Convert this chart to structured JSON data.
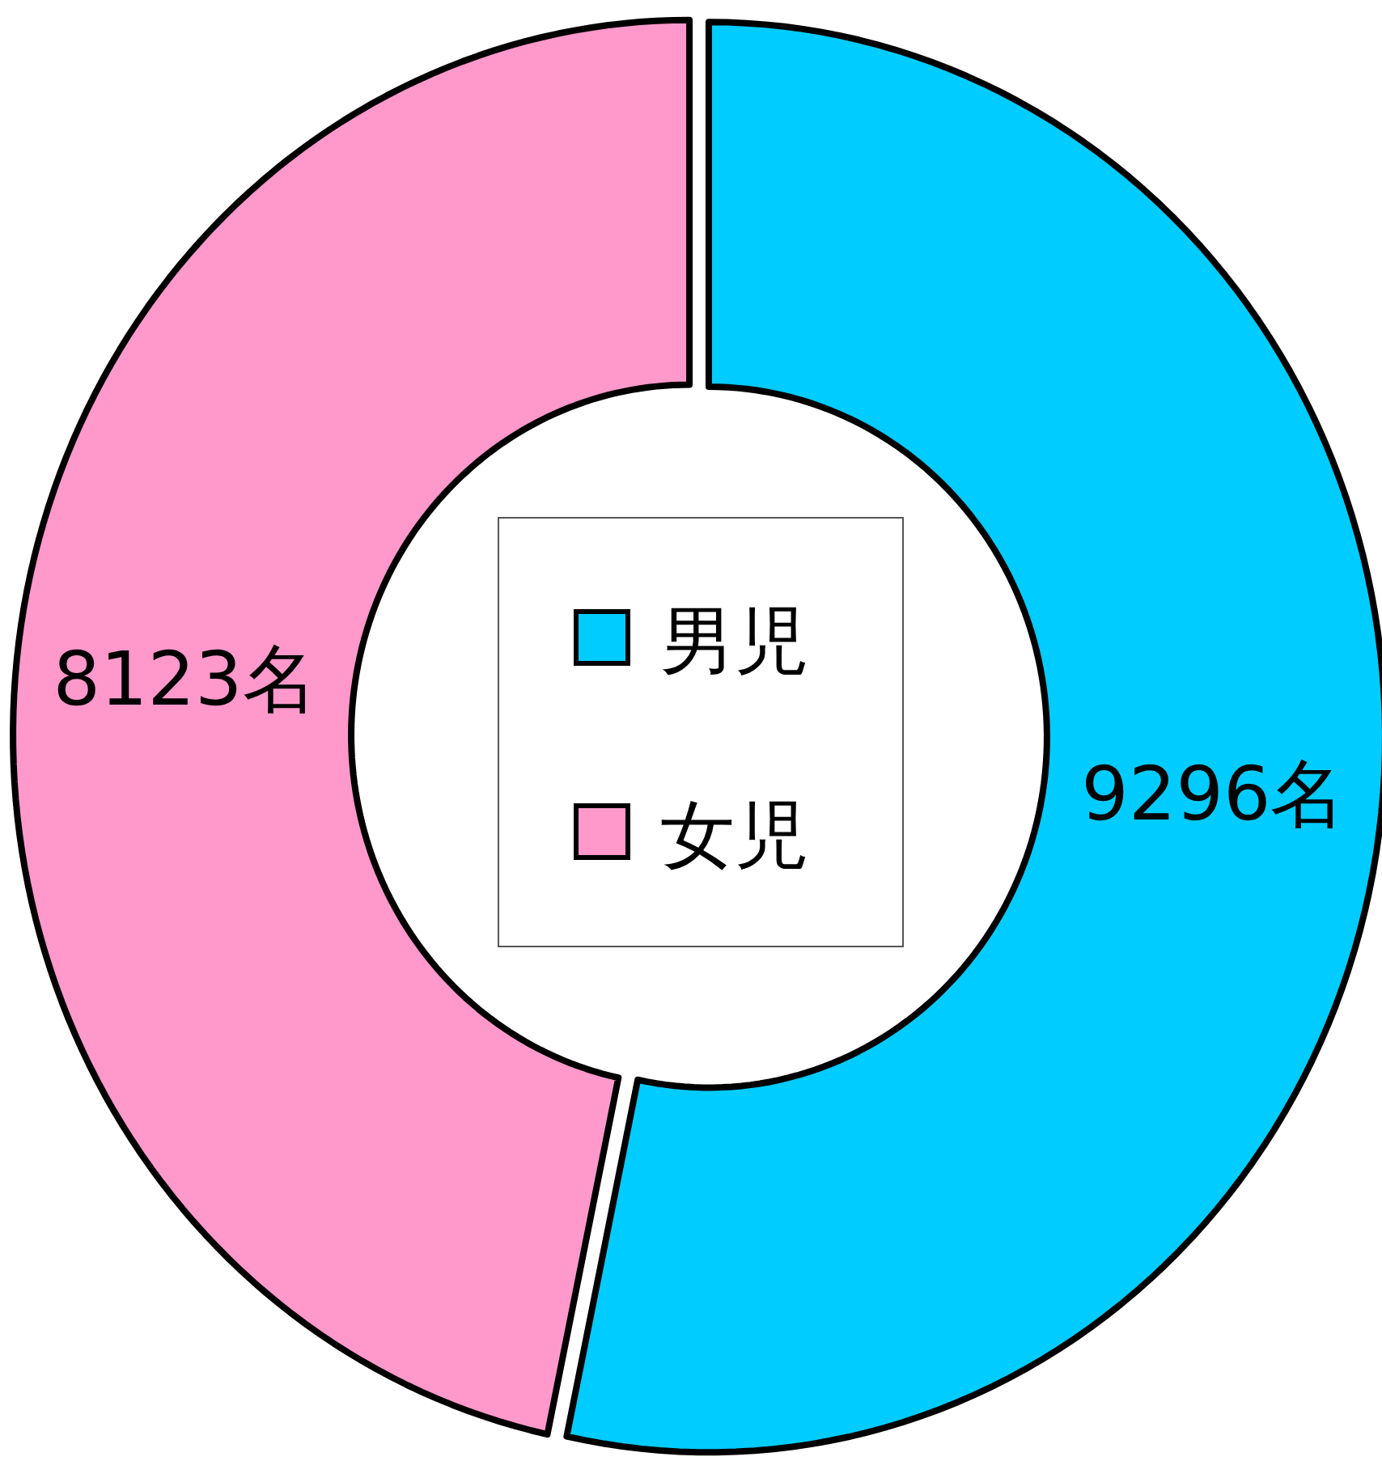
{
  "chart_data": {
    "type": "donut",
    "categories": [
      "男児",
      "女児"
    ],
    "values": [
      9296,
      8123
    ],
    "colors": [
      "#00ccff",
      "#ff99cc"
    ],
    "value_labels": [
      "9296名",
      "8123名"
    ],
    "legend": "center"
  }
}
